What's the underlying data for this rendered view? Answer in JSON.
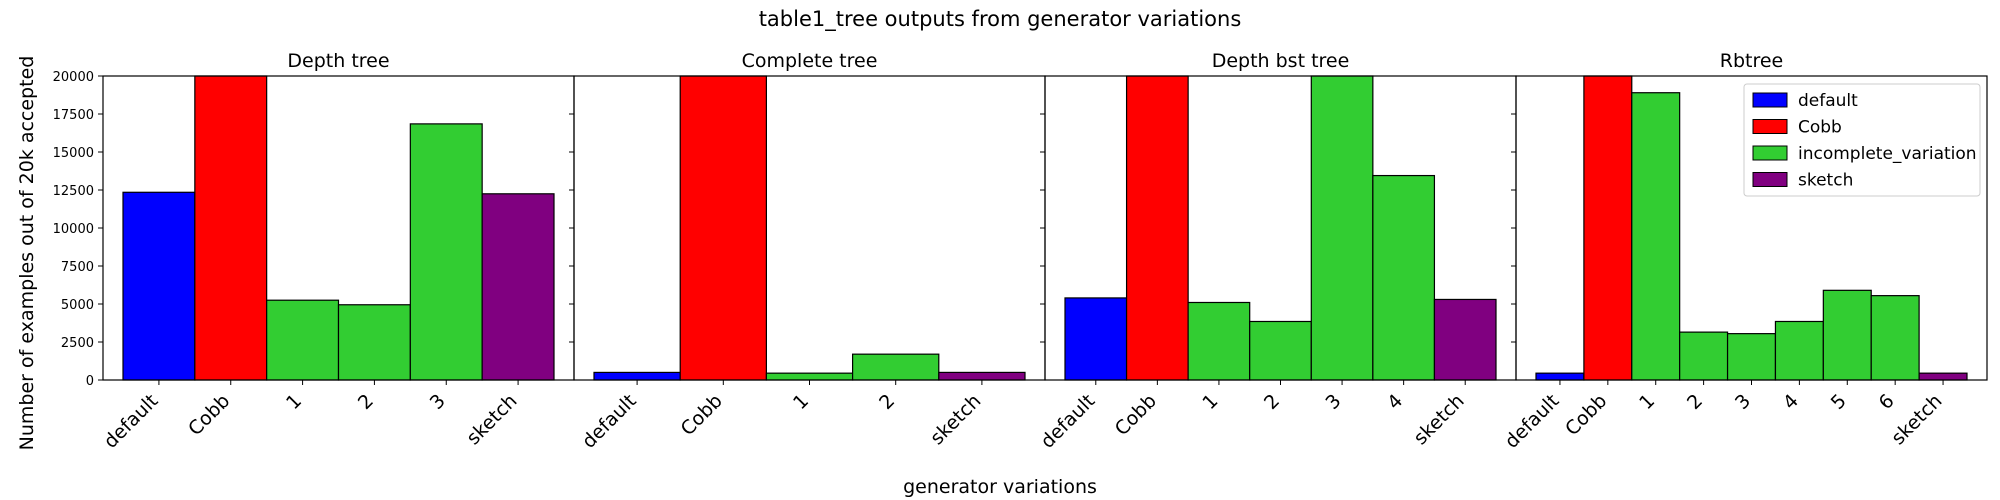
{
  "title": "table1_tree outputs from generator variations",
  "xlabel": "generator variations",
  "ylabel": "Number of examples out of 20k accepted",
  "colors": {
    "default": "#0000ff",
    "Cobb": "#ff0000",
    "incomplete_variation": "#32cd32",
    "sketch": "#800080"
  },
  "legend": {
    "placement": "upper-right",
    "entries": [
      {
        "label": "default",
        "key": "default"
      },
      {
        "label": "Cobb",
        "key": "Cobb"
      },
      {
        "label": "incomplete_variation",
        "key": "incomplete_variation"
      },
      {
        "label": "sketch",
        "key": "sketch"
      }
    ]
  },
  "chart_data": [
    {
      "type": "bar",
      "title": "Depth tree",
      "categories": [
        "default",
        "Cobb",
        "1",
        "2",
        "3",
        "sketch"
      ],
      "groups": [
        "default",
        "Cobb",
        "incomplete_variation",
        "incomplete_variation",
        "incomplete_variation",
        "sketch"
      ],
      "values": [
        12350,
        20000,
        5250,
        4950,
        16850,
        12250
      ],
      "ylim": [
        0,
        20000
      ],
      "yticks": [
        0,
        2500,
        5000,
        7500,
        10000,
        12500,
        15000,
        17500,
        20000
      ]
    },
    {
      "type": "bar",
      "title": "Complete tree",
      "categories": [
        "default",
        "Cobb",
        "1",
        "2",
        "sketch"
      ],
      "groups": [
        "default",
        "Cobb",
        "incomplete_variation",
        "incomplete_variation",
        "sketch"
      ],
      "values": [
        500,
        20000,
        450,
        1700,
        500
      ],
      "ylim": [
        0,
        20000
      ]
    },
    {
      "type": "bar",
      "title": "Depth bst tree",
      "categories": [
        "default",
        "Cobb",
        "1",
        "2",
        "3",
        "4",
        "sketch"
      ],
      "groups": [
        "default",
        "Cobb",
        "incomplete_variation",
        "incomplete_variation",
        "incomplete_variation",
        "incomplete_variation",
        "sketch"
      ],
      "values": [
        5400,
        20000,
        5100,
        3850,
        20000,
        13450,
        5300
      ],
      "ylim": [
        0,
        20000
      ]
    },
    {
      "type": "bar",
      "title": "Rbtree",
      "categories": [
        "default",
        "Cobb",
        "1",
        "2",
        "3",
        "4",
        "5",
        "6",
        "sketch"
      ],
      "groups": [
        "default",
        "Cobb",
        "incomplete_variation",
        "incomplete_variation",
        "incomplete_variation",
        "incomplete_variation",
        "incomplete_variation",
        "incomplete_variation",
        "sketch"
      ],
      "values": [
        450,
        20000,
        18900,
        3150,
        3050,
        3850,
        5900,
        5550,
        450
      ],
      "ylim": [
        0,
        20000
      ]
    }
  ]
}
